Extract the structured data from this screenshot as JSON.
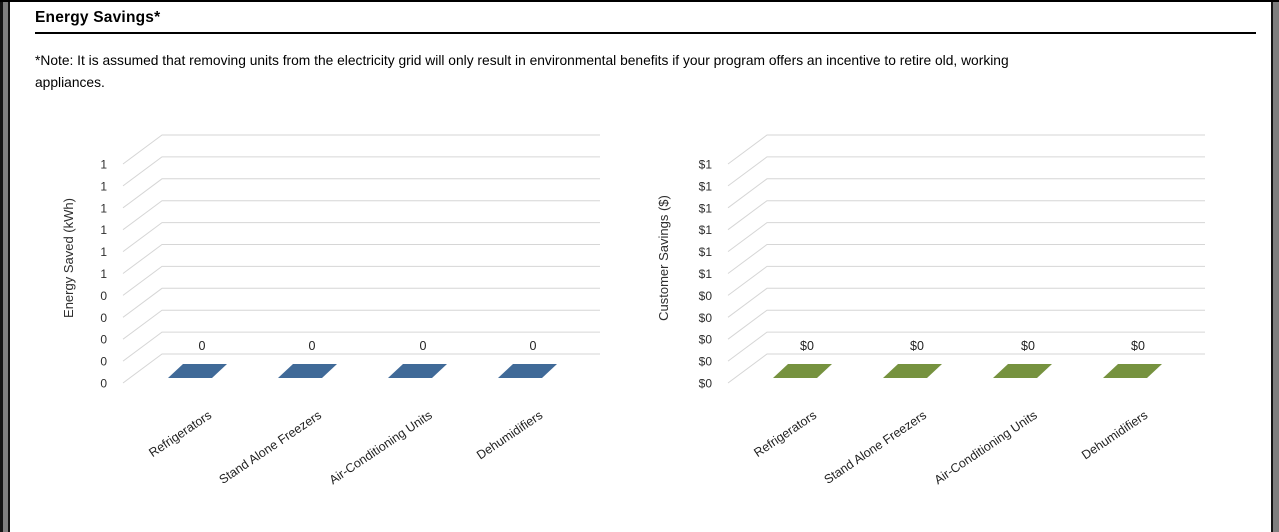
{
  "page": {
    "title": "Energy Savings*",
    "note_line1": "*Note: It is assumed that removing units from the electricity grid will only result in environmental benefits if your program offers an incentive to retire old, working",
    "note_line2": "appliances."
  },
  "chart_data": [
    {
      "type": "bar",
      "style": "3d-bar-flat-excel",
      "title": "",
      "xlabel": "",
      "ylabel": "Energy Saved (kWh)",
      "categories": [
        "Refrigerators",
        "Stand Alone Freezers",
        "Air-Conditioning Units",
        "Dehumidifiers"
      ],
      "values": [
        0,
        0,
        0,
        0
      ],
      "data_labels": [
        "0",
        "0",
        "0",
        "0"
      ],
      "y_tick_labels_top_to_bottom": [
        "1",
        "1",
        "1",
        "1",
        "1",
        "1",
        "0",
        "0",
        "0",
        "0",
        "0"
      ],
      "ylim": [
        0,
        1
      ],
      "y_step": 0.1,
      "grid": true,
      "legend": "none",
      "bar_color": "#406a98",
      "grid_color": "#d6d6d6"
    },
    {
      "type": "bar",
      "style": "3d-bar-flat-excel",
      "title": "",
      "xlabel": "",
      "ylabel": "Customer Savings ($)",
      "categories": [
        "Refrigerators",
        "Stand Alone Freezers",
        "Air-Conditioning Units",
        "Dehumidifiers"
      ],
      "values": [
        0,
        0,
        0,
        0
      ],
      "data_labels": [
        "$0",
        "$0",
        "$0",
        "$0"
      ],
      "y_tick_labels_top_to_bottom": [
        "$1",
        "$1",
        "$1",
        "$1",
        "$1",
        "$1",
        "$0",
        "$0",
        "$0",
        "$0",
        "$0"
      ],
      "ylim": [
        0,
        1
      ],
      "y_step": 0.1,
      "grid": true,
      "legend": "none",
      "bar_color": "#76923f",
      "grid_color": "#d6d6d6"
    }
  ]
}
